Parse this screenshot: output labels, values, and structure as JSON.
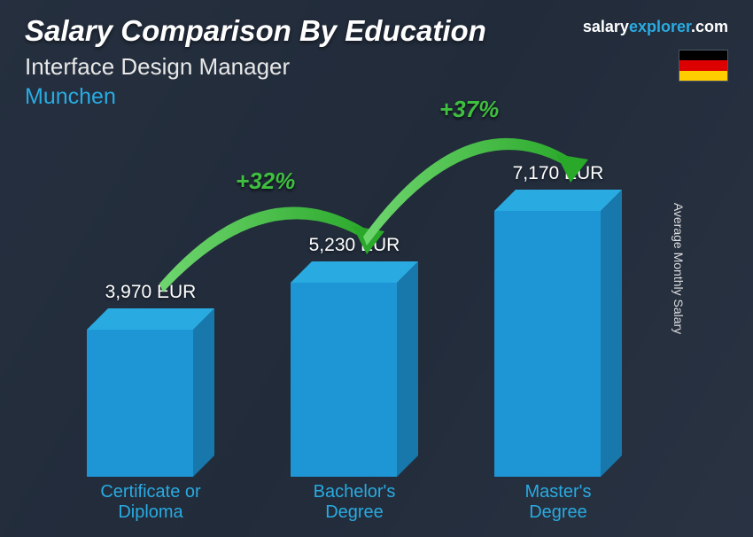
{
  "header": {
    "title": "Salary Comparison By Education",
    "subtitle": "Interface Design Manager",
    "location": "Munchen"
  },
  "brand": {
    "part1": "salary",
    "part2": "explorer",
    "part3": ".com"
  },
  "flag": {
    "stripes": [
      "#000000",
      "#dd0000",
      "#ffce00"
    ]
  },
  "axis_label": "Average Monthly Salary",
  "chart": {
    "type": "bar",
    "bar_color_front": "#1e95d4",
    "bar_color_top": "#29abe2",
    "bar_color_side": "#1878ab",
    "label_color": "#29abe2",
    "value_color": "#ffffff",
    "label_fontsize": 20,
    "value_fontsize": 21,
    "bar_front_width": 120,
    "bar_depth": 24,
    "max_bar_height": 300,
    "max_value": 7170,
    "group_spacing": 230,
    "bars": [
      {
        "label_line1": "Certificate or",
        "label_line2": "Diploma",
        "value": 3970,
        "value_label": "3,970 EUR"
      },
      {
        "label_line1": "Bachelor's",
        "label_line2": "Degree",
        "value": 5230,
        "value_label": "5,230 EUR"
      },
      {
        "label_line1": "Master's",
        "label_line2": "Degree",
        "value": 7170,
        "value_label": "7,170 EUR"
      }
    ],
    "increases": [
      {
        "label": "+32%",
        "from": 0,
        "to": 1
      },
      {
        "label": "+37%",
        "from": 1,
        "to": 2
      }
    ],
    "arrow_color_light": "#6fd66f",
    "arrow_color_dark": "#2aa82a"
  }
}
